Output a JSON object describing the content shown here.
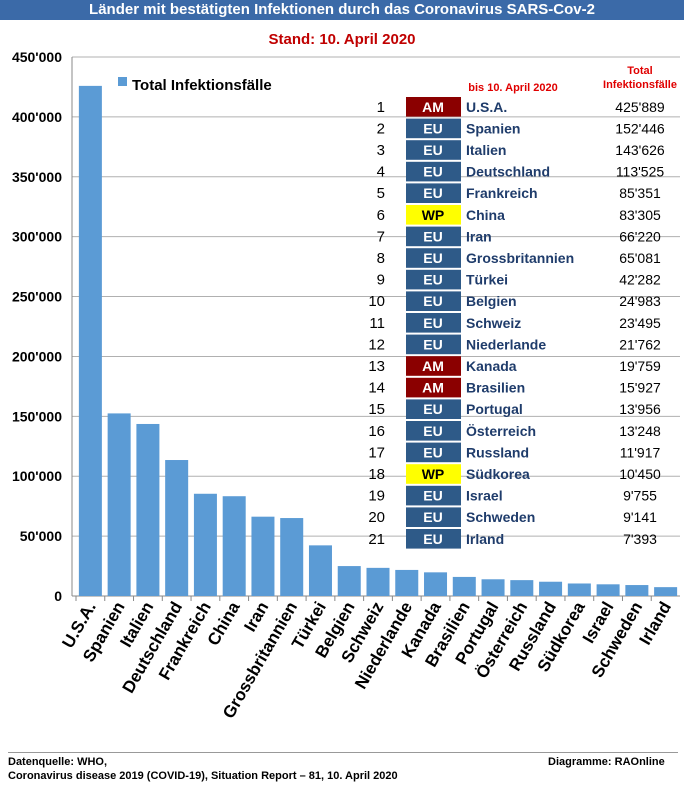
{
  "header": {
    "title": "Länder mit bestätigten Infektionen durch das Coronavirus SARS-Cov-2",
    "subtitle": "Stand: 10. April 2020"
  },
  "legend": {
    "label": "Total Infektionsfälle"
  },
  "table": {
    "header_date": "bis 10. April 2020",
    "header_total": "Total\nInfektionsfälle"
  },
  "colors": {
    "bar": "#5b9bd5",
    "AM": "#8b0000",
    "EU": "#2e5a88",
    "WP": "#ffff00",
    "grid": "#b0b0b0",
    "country_text": "#1f3c6b"
  },
  "chart_data": {
    "type": "bar",
    "title": "Länder mit bestätigten Infektionen durch das Coronavirus SARS-Cov-2",
    "ylim": [
      0,
      450000
    ],
    "yticks": [
      0,
      50000,
      100000,
      150000,
      200000,
      250000,
      300000,
      350000,
      400000,
      450000
    ],
    "ytick_labels": [
      "0",
      "50'000",
      "100'000",
      "150'000",
      "200'000",
      "250'000",
      "300'000",
      "350'000",
      "400'000",
      "450'000"
    ],
    "grid": true,
    "legend_position": "top-left",
    "categories": [
      "U.S.A.",
      "Spanien",
      "Italien",
      "Deutschland",
      "Frankreich",
      "China",
      "Iran",
      "Grossbritannien",
      "Türkei",
      "Belgien",
      "Schweiz",
      "Niederlande",
      "Kanada",
      "Brasilien",
      "Portugal",
      "Österreich",
      "Russland",
      "Südkorea",
      "Israel",
      "Schweden",
      "Irland"
    ],
    "values": [
      425889,
      152446,
      143626,
      113525,
      85351,
      83305,
      66220,
      65081,
      42282,
      24983,
      23495,
      21762,
      19759,
      15927,
      13956,
      13248,
      11917,
      10450,
      9755,
      9141,
      7393
    ],
    "rows": [
      {
        "rank": "1",
        "region": "AM",
        "country": "U.S.A.",
        "total": "425'889"
      },
      {
        "rank": "2",
        "region": "EU",
        "country": "Spanien",
        "total": "152'446"
      },
      {
        "rank": "3",
        "region": "EU",
        "country": "Italien",
        "total": "143'626"
      },
      {
        "rank": "4",
        "region": "EU",
        "country": "Deutschland",
        "total": "113'525"
      },
      {
        "rank": "5",
        "region": "EU",
        "country": "Frankreich",
        "total": "85'351"
      },
      {
        "rank": "6",
        "region": "WP",
        "country": "China",
        "total": "83'305"
      },
      {
        "rank": "7",
        "region": "EU",
        "country": "Iran",
        "total": "66'220"
      },
      {
        "rank": "8",
        "region": "EU",
        "country": "Grossbritannien",
        "total": "65'081"
      },
      {
        "rank": "9",
        "region": "EU",
        "country": "Türkei",
        "total": "42'282"
      },
      {
        "rank": "10",
        "region": "EU",
        "country": "Belgien",
        "total": "24'983"
      },
      {
        "rank": "11",
        "region": "EU",
        "country": "Schweiz",
        "total": "23'495"
      },
      {
        "rank": "12",
        "region": "EU",
        "country": "Niederlande",
        "total": "21'762"
      },
      {
        "rank": "13",
        "region": "AM",
        "country": "Kanada",
        "total": "19'759"
      },
      {
        "rank": "14",
        "region": "AM",
        "country": "Brasilien",
        "total": "15'927"
      },
      {
        "rank": "15",
        "region": "EU",
        "country": "Portugal",
        "total": "13'956"
      },
      {
        "rank": "16",
        "region": "EU",
        "country": "Österreich",
        "total": "13'248"
      },
      {
        "rank": "17",
        "region": "EU",
        "country": "Russland",
        "total": "11'917"
      },
      {
        "rank": "18",
        "region": "WP",
        "country": "Südkorea",
        "total": "10'450"
      },
      {
        "rank": "19",
        "region": "EU",
        "country": "Israel",
        "total": "9'755"
      },
      {
        "rank": "20",
        "region": "EU",
        "country": "Schweden",
        "total": "9'141"
      },
      {
        "rank": "21",
        "region": "EU",
        "country": "Irland",
        "total": "7'393"
      }
    ]
  },
  "footer": {
    "source_line1": "Datenquelle: WHO,",
    "source_line2": "Coronavirus disease 2019 (COVID-19), Situation Report – 81,  10. April 2020",
    "credit": "Diagramme: RAOnline"
  }
}
